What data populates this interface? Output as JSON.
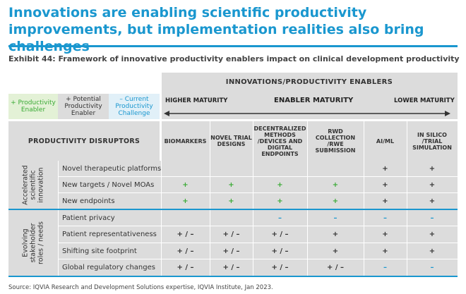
{
  "title": "Innovations are enabling scientific productivity improvements, but implementation realities also bring challenges",
  "exhibit": "Exhibit 44: Framework of innovative productivity enablers impact on clinical development productivity",
  "header": "INNOVATIONS/PRODUCTIVITY ENABLERS",
  "maturity": {
    "left": "HIGHER MATURITY",
    "center": "ENABLER MATURITY",
    "right": "LOWER MATURITY"
  },
  "legend": {
    "enabler": "+ Productivity Enabler",
    "potential": "+ Potential Productivity Enabler",
    "challenge": "– Current Productivity Challenge"
  },
  "disruptors_header": "PRODUCTIVITY DISRUPTORS",
  "columns": [
    "BIOMARKERS",
    "NOVEL TRIAL DESIGNS",
    "DECENTRALIZED METHODS /DEVICES AND DIGITAL ENDPOINTS",
    "RWD COLLECTION /RWE SUBMISSION",
    "AI/ML",
    "IN SILICO /TRIAL SIMULATION"
  ],
  "groups": [
    {
      "label": "Accelerated scientific innovation"
    },
    {
      "label": "Evolving stakeholder roles / needs"
    }
  ],
  "rows": [
    {
      "label": "Novel therapeutic platforms",
      "cells": [
        "",
        "",
        "",
        "",
        "+",
        "+"
      ]
    },
    {
      "label": "New targets / Novel MOAs",
      "cells": [
        "+",
        "+",
        "+",
        "+",
        "+",
        "+"
      ]
    },
    {
      "label": "New endpoints",
      "cells": [
        "+",
        "+",
        "+",
        "+",
        "+",
        "+"
      ]
    },
    {
      "label": "Patient privacy",
      "cells": [
        "",
        "",
        "–",
        "–",
        "–",
        "–"
      ]
    },
    {
      "label": "Patient representativeness",
      "cells": [
        "+ / –",
        "+ / –",
        "+ / –",
        "+",
        "+",
        "+"
      ]
    },
    {
      "label": "Shifting site footprint",
      "cells": [
        "+ / –",
        "+ / –",
        "+ / –",
        "+",
        "+",
        "+"
      ]
    },
    {
      "label": "Global regulatory changes",
      "cells": [
        "+ / –",
        "+ / –",
        "+ / –",
        "+ / –",
        "–",
        "–"
      ]
    }
  ],
  "colors": {
    "accent": "#1a97cf",
    "enabler": "#3aaa35",
    "potential": "#333333",
    "challenge": "#1a97cf",
    "grey": "#dcdcdc"
  },
  "source": "Source: IQVIA Research and Development Solutions expertise, IQVIA Institute, Jan 2023."
}
